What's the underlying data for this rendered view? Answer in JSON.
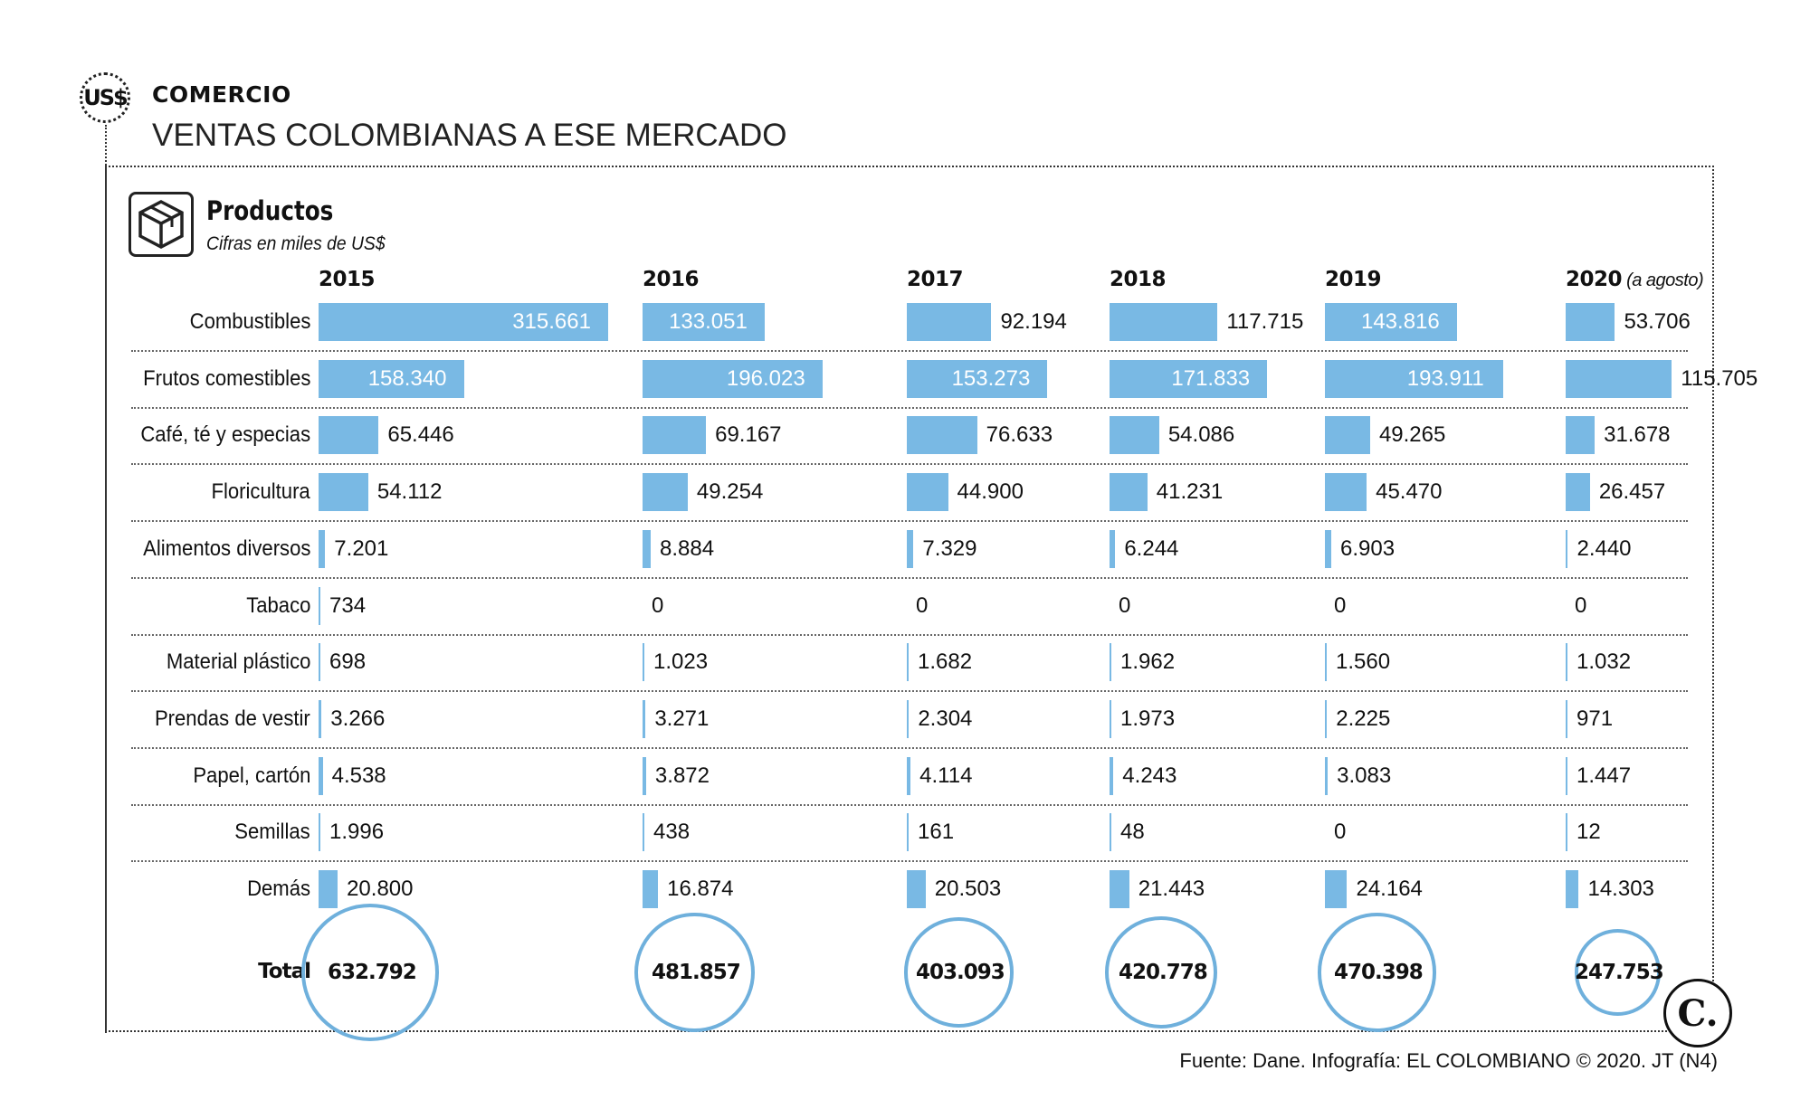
{
  "header": {
    "badge": "US$",
    "kicker": "COMERCIO",
    "headline": "VENTAS COLOMBIANAS A ESE MERCADO"
  },
  "section": {
    "icon": "package-box-icon",
    "title": "Productos",
    "subtitle": "Cifras en miles de US$"
  },
  "chart_data": {
    "type": "bar",
    "title": "Productos",
    "subtitle": "Cifras en miles de US$",
    "unit": "miles de US$",
    "years": [
      "2015",
      "2016",
      "2017",
      "2018",
      "2019",
      "2020"
    ],
    "year_notes": [
      "",
      "",
      "",
      "",
      "",
      "(a agosto)"
    ],
    "categories": [
      "Combustibles",
      "Frutos comestibles",
      "Café, té y especias",
      "Floricultura",
      "Alimentos diversos",
      "Tabaco",
      "Material plástico",
      "Prendas de vestir",
      "Papel, cartón",
      "Semillas",
      "Demás"
    ],
    "series": [
      {
        "name": "2015",
        "values": [
          315661,
          158340,
          65446,
          54112,
          7201,
          734,
          698,
          3266,
          4538,
          1996,
          20800
        ],
        "labels": [
          "315.661",
          "158.340",
          "65.446",
          "54.112",
          "7.201",
          "734",
          "698",
          "3.266",
          "4.538",
          "1.996",
          "20.800"
        ]
      },
      {
        "name": "2016",
        "values": [
          133051,
          196023,
          69167,
          49254,
          8884,
          0,
          1023,
          3271,
          3872,
          438,
          16874
        ],
        "labels": [
          "133.051",
          "196.023",
          "69.167",
          "49.254",
          "8.884",
          "0",
          "1.023",
          "3.271",
          "3.872",
          "438",
          "16.874"
        ]
      },
      {
        "name": "2017",
        "values": [
          92194,
          153273,
          76633,
          44900,
          7329,
          0,
          1682,
          2304,
          4114,
          161,
          20503
        ],
        "labels": [
          "92.194",
          "153.273",
          "76.633",
          "44.900",
          "7.329",
          "0",
          "1.682",
          "2.304",
          "4.114",
          "161",
          "20.503"
        ]
      },
      {
        "name": "2018",
        "values": [
          117715,
          171833,
          54086,
          41231,
          6244,
          0,
          1962,
          1973,
          4243,
          48,
          21443
        ],
        "labels": [
          "117.715",
          "171.833",
          "54.086",
          "41.231",
          "6.244",
          "0",
          "1.962",
          "1.973",
          "4.243",
          "48",
          "21.443"
        ]
      },
      {
        "name": "2019",
        "values": [
          143816,
          193911,
          49265,
          45470,
          6903,
          0,
          1560,
          2225,
          3083,
          0,
          24164
        ],
        "labels": [
          "143.816",
          "193.911",
          "49.265",
          "45.470",
          "6.903",
          "0",
          "1.560",
          "2.225",
          "3.083",
          "0",
          "24.164"
        ]
      },
      {
        "name": "2020",
        "values": [
          53706,
          115705,
          31678,
          26457,
          2440,
          0,
          1032,
          971,
          1447,
          12,
          14303
        ],
        "labels": [
          "53.706",
          "115.705",
          "31.678",
          "26.457",
          "2.440",
          "0",
          "1.032",
          "971",
          "1.447",
          "12",
          "14.303"
        ]
      }
    ],
    "total_label": "Total",
    "totals": [
      632792,
      481857,
      403093,
      420778,
      470398,
      247753
    ],
    "total_labels": [
      "632.792",
      "481.857",
      "403.093",
      "420.778",
      "470.398",
      "247.753"
    ]
  },
  "footer": {
    "source": "Fuente: Dane. Infografía: EL COLOMBIANO © 2020. JT (N4)",
    "logo": "C."
  }
}
